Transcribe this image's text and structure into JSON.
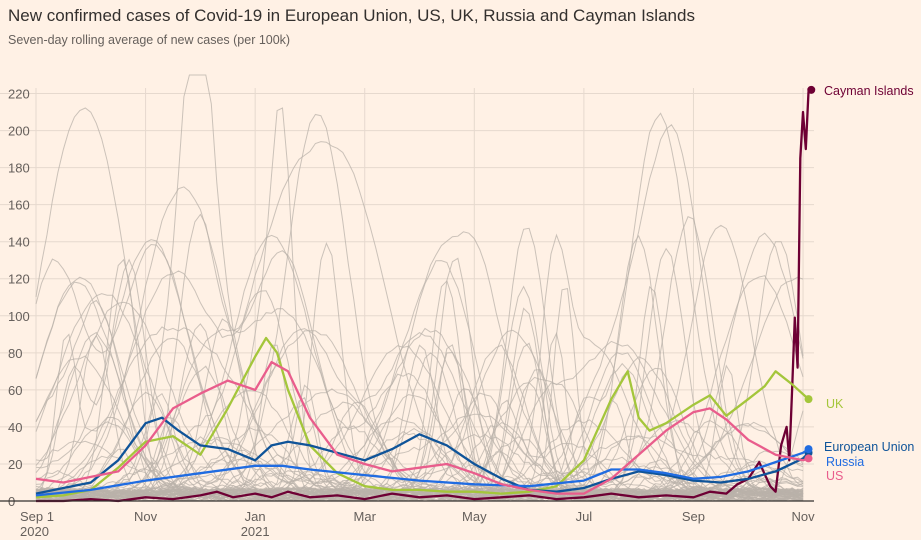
{
  "header": {
    "title": "New confirmed cases of Covid-19 in European Union, US, UK, Russia and Cayman Islands",
    "subtitle": "Seven-day rolling average of new cases (per 100k)"
  },
  "chart_data": {
    "type": "line",
    "title": "New confirmed cases of Covid-19 in European Union, US, UK, Russia and Cayman Islands",
    "subtitle": "Seven-day rolling average of new cases (per 100k)",
    "xlabel": "",
    "ylabel": "",
    "x_unit": "months since Sep 1 2020",
    "xlim": [
      0,
      14.2
    ],
    "ylim": [
      0,
      230
    ],
    "yticks": [
      0,
      20,
      40,
      60,
      80,
      100,
      120,
      140,
      160,
      180,
      200,
      220
    ],
    "xticks": [
      {
        "x": 0,
        "label": "Sep 1",
        "sublabel": "2020"
      },
      {
        "x": 2,
        "label": "Nov",
        "sublabel": ""
      },
      {
        "x": 4,
        "label": "Jan",
        "sublabel": "2021"
      },
      {
        "x": 6,
        "label": "Mar",
        "sublabel": ""
      },
      {
        "x": 8,
        "label": "May",
        "sublabel": ""
      },
      {
        "x": 10,
        "label": "Jul",
        "sublabel": ""
      },
      {
        "x": 12,
        "label": "Sep",
        "sublabel": ""
      },
      {
        "x": 14,
        "label": "Nov",
        "sublabel": ""
      }
    ],
    "grid": true,
    "background_series_note": "grey lines for other countries",
    "series": [
      {
        "name": "Cayman Islands",
        "color": "#6e0034",
        "x": [
          0,
          0.5,
          1,
          1.5,
          2,
          2.5,
          3,
          3.3,
          3.6,
          4,
          4.3,
          4.6,
          5,
          5.5,
          6,
          6.5,
          7,
          7.5,
          8,
          8.5,
          9,
          9.5,
          10,
          10.5,
          11,
          11.5,
          12,
          12.3,
          12.6,
          12.8,
          13,
          13.2,
          13.4,
          13.5,
          13.6,
          13.7,
          13.75,
          13.8,
          13.85,
          13.9,
          13.95,
          14.0,
          14.05,
          14.1,
          14.15
        ],
        "values": [
          0,
          0,
          1,
          0,
          2,
          1,
          3,
          5,
          2,
          4,
          2,
          5,
          2,
          3,
          1,
          4,
          2,
          3,
          1,
          2,
          3,
          1,
          2,
          4,
          2,
          3,
          2,
          5,
          4,
          9,
          12,
          21,
          8,
          5,
          30,
          40,
          22,
          60,
          99,
          72,
          185,
          210,
          190,
          221,
          222
        ]
      },
      {
        "name": "UK",
        "color": "#a4c63b",
        "x": [
          0,
          0.5,
          1,
          1.5,
          2,
          2.5,
          3,
          3.5,
          4,
          4.2,
          4.4,
          4.6,
          5,
          5.5,
          6,
          6.5,
          7,
          7.5,
          8,
          8.5,
          9,
          9.5,
          10,
          10.5,
          10.8,
          11,
          11.2,
          11.5,
          12,
          12.3,
          12.6,
          13,
          13.3,
          13.5,
          13.8,
          14.1
        ],
        "values": [
          2,
          3,
          6,
          18,
          32,
          35,
          25,
          50,
          78,
          88,
          80,
          60,
          30,
          15,
          8,
          6,
          6,
          5,
          5,
          4,
          5,
          8,
          22,
          55,
          70,
          45,
          38,
          42,
          52,
          57,
          46,
          55,
          62,
          70,
          63,
          55
        ]
      },
      {
        "name": "European Union",
        "color": "#0f5499",
        "x": [
          0,
          0.5,
          1,
          1.5,
          2,
          2.3,
          2.6,
          3,
          3.5,
          4,
          4.3,
          4.6,
          5,
          5.5,
          6,
          6.5,
          7,
          7.5,
          8,
          8.5,
          9,
          9.5,
          10,
          10.5,
          11,
          11.5,
          12,
          12.5,
          13,
          13.5,
          14,
          14.1
        ],
        "values": [
          4,
          7,
          10,
          22,
          42,
          45,
          38,
          30,
          28,
          22,
          30,
          32,
          30,
          26,
          22,
          28,
          36,
          30,
          20,
          12,
          6,
          5,
          7,
          12,
          16,
          14,
          11,
          10,
          12,
          16,
          23,
          26
        ]
      },
      {
        "name": "Russia",
        "color": "#206ce1",
        "x": [
          0,
          1,
          2,
          3,
          4,
          4.5,
          5,
          6,
          7,
          8,
          9,
          10,
          10.5,
          11,
          11.5,
          12,
          12.5,
          13,
          13.5,
          14,
          14.1
        ],
        "values": [
          3,
          6,
          11,
          15,
          19,
          19,
          17,
          14,
          11,
          9,
          8,
          11,
          17,
          17,
          15,
          12,
          13,
          16,
          21,
          26,
          28
        ]
      },
      {
        "name": "US",
        "color": "#e95d8c",
        "x": [
          0,
          0.5,
          1,
          1.5,
          2,
          2.5,
          3,
          3.5,
          4,
          4.3,
          4.6,
          5,
          5.5,
          6,
          6.5,
          7,
          7.5,
          8,
          8.5,
          9,
          9.5,
          10,
          10.5,
          11,
          11.5,
          12,
          12.3,
          12.6,
          13,
          13.5,
          14,
          14.1
        ],
        "values": [
          12,
          10,
          13,
          16,
          30,
          50,
          58,
          65,
          60,
          75,
          70,
          45,
          25,
          20,
          16,
          18,
          20,
          15,
          9,
          6,
          4,
          4,
          12,
          25,
          38,
          48,
          50,
          44,
          33,
          25,
          22,
          23
        ]
      }
    ]
  },
  "labels": {
    "cayman": "Cayman Islands",
    "uk": "UK",
    "eu": "European Union",
    "russia": "Russia",
    "us": "US"
  }
}
